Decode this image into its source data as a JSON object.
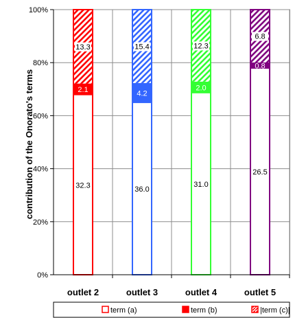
{
  "chart_data": {
    "type": "bar",
    "stacked": "percent",
    "ylabel": "contribution of the Onorato's terms",
    "ylim": [
      0,
      100
    ],
    "yticks": [
      "0%",
      "20%",
      "40%",
      "60%",
      "80%",
      "100%"
    ],
    "categories": [
      "outlet 2",
      "outlet 3",
      "outlet 4",
      "outlet 5"
    ],
    "colors": [
      "#ff0000",
      "#3366ff",
      "#33ff33",
      "#800080"
    ],
    "series": [
      {
        "name": "term (a)",
        "values": [
          32.3,
          36.0,
          31.0,
          26.5
        ]
      },
      {
        "name": "term (b)",
        "values": [
          2.1,
          4.2,
          2.0,
          0.8
        ]
      },
      {
        "name": "|term (c)|",
        "values": [
          13.3,
          15.4,
          12.3,
          6.8
        ]
      }
    ],
    "grid": true,
    "legend": "bottom"
  }
}
